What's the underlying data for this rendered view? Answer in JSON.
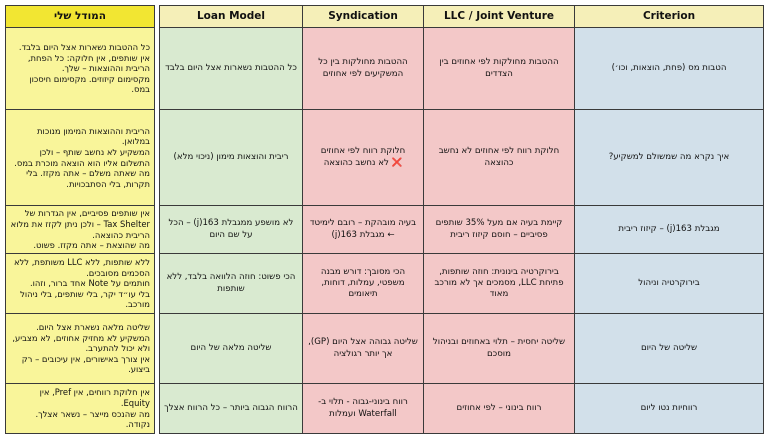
{
  "headers": {
    "mine": "המודל שלי",
    "loan": "Loan Model",
    "synd": "Syndication",
    "llc": "LLC / Joint Venture",
    "crit": "Criterion"
  },
  "rows": [
    {
      "mine": [
        "כל ההטבות נשארות אצל היום בלבד.",
        "אין שותפים, אין חלוקה: כל הפחת, הריבית וההוצאות – שלך.",
        "מקסימום קיזוזים. מקסימום חיסכון במס."
      ],
      "loan": [
        "כל ההטבות נשארות אצל היום בלבד"
      ],
      "synd": [
        "ההטבות מחולקות בין כל המשקיעים לפי אחוזים"
      ],
      "llc": [
        "ההטבות מחולקות לפי אחוזים בין הצדדים"
      ],
      "crit": "הטבות מס (פחת, הוצאות, וכו׳)"
    },
    {
      "mine": [
        "הריבית וההוצאות המימון מנוכות במלואן.",
        "המשקיע לא נחשב שותף – ולכן התשלום אליו הוא הוצאה מוכרת במס.",
        "מה שאתה משלם – אתה מקזז. בלי תקרות, בלי הסתבכויות."
      ],
      "loan": [
        "ריבית והוצאות מימון (ניכוי מלא)"
      ],
      "synd": [
        "חלוקת רווח לפי אחוזים",
        "לא נחשב כהוצאה"
      ],
      "llc": [
        "חלוקת רווח לפי אחוזים לא נחשב כהוצאה"
      ],
      "crit": "איך נקרא מה שמשולם למשקיע?",
      "x_marks": "❌"
    },
    {
      "mine": [
        "אין שותפים פסיביים, אין הגדרות של Tax Shelter – ולכן ניתן לקזז את מלוא הריבית כהוצאה.",
        "מה שהוצאת – אתה מקזז. פשוט."
      ],
      "loan": [
        "לא מושפע ממגבלת 163(j) – הכל על שם היום"
      ],
      "synd": [
        "בעיה מובהקת – רובם לימיטד ← מגבלת 163(j)"
      ],
      "llc": [
        "קיימת בעיה אם מעל 35% שותפים פסיביים – חוסם קיזוז ריבית"
      ],
      "crit": "מגבלת 163(j) – קיזוז ריבית"
    },
    {
      "mine": [
        "ללא שותפות, ללא LLC משותפת, ללא הסכמים מסובכים.",
        "חותמים על Note אחד ברור, וזהו.",
        "בלי עו״ד יקר, בלי שותפים, בלי ניהול מורכב."
      ],
      "loan": [
        "הכי פשוט: חוזה הלוואה בלבד, ללא שותפות"
      ],
      "synd": [
        "הכי מסובך: דורש מבנה משפטי, עמלות, דוחות, תיאומים"
      ],
      "llc": [
        "בירוקרטיה בינונית: חוזה שותפות, פתיחת LLC, מסמכים אך לא מורכב מאוד"
      ],
      "crit": "בירוקרטיה וניהול"
    },
    {
      "mine": [
        "שליטה מלאה נשארת אצל היום.",
        "המשקיע לא מחזיק אחוזים, לא מצביע, ולא יכול להתערב.",
        "אין צורך באישורים, אין עיכובים – רק ביצוע."
      ],
      "loan": [
        "שליטה מלאה של היום"
      ],
      "synd": [
        "שליטה גבוהה אצל היום (GP), אך יותר רגולציה"
      ],
      "llc": [
        "שליטה יחסית – תלוי באחוזים ובניהול מוסכם"
      ],
      "crit": "שליטה של היום"
    },
    {
      "mine": [
        "אין חלוקת רווחים, אין Pref, אין Equity.",
        "מה שהנכס מייצר – נשאר אצלך. נקודה."
      ],
      "loan": [
        "הרווח הגבוה ביותר – כל הרווח אצלך"
      ],
      "synd": [
        "רווח בינוני-גבוה - תלוי ב-Waterfall ועמלות"
      ],
      "llc": [
        "רווח בינוני – לפי אחוזים"
      ],
      "crit": "רווחיות נטו ליום"
    }
  ]
}
